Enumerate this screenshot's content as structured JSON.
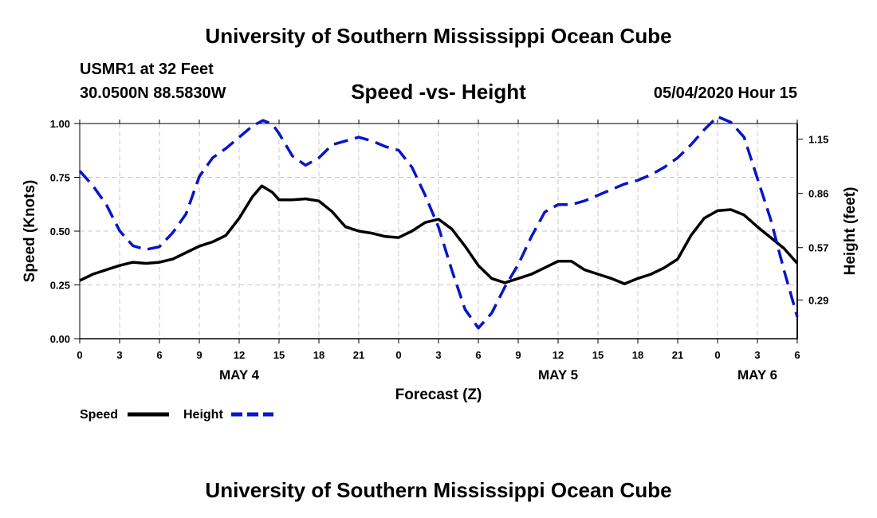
{
  "header": {
    "title": "University of Southern Mississippi Ocean Cube",
    "station": "USMR1 at 32 Feet",
    "coords": "30.0500N 88.5830W",
    "datetime": "05/04/2020 Hour 15"
  },
  "footer": {
    "title": "University of Southern Mississippi Ocean Cube"
  },
  "chart_data": {
    "type": "line",
    "title": "Speed -vs- Height",
    "xlabel": "Forecast (Z)",
    "ylabel": "Speed (Knots)",
    "y2label": "Height (feet)",
    "x_range": [
      0,
      54
    ],
    "ylim": [
      0,
      1.0
    ],
    "y2lim": [
      0.0833,
      1.2333
    ],
    "x_tick_values": [
      0,
      3,
      6,
      9,
      12,
      15,
      18,
      21,
      24,
      27,
      30,
      33,
      36,
      39,
      42,
      45,
      48,
      51,
      54
    ],
    "x_tick_labels": [
      "0",
      "3",
      "6",
      "9",
      "12",
      "15",
      "18",
      "21",
      "0",
      "3",
      "6",
      "9",
      "12",
      "15",
      "18",
      "21",
      "0",
      "3",
      "6"
    ],
    "y_tick_values": [
      0,
      0.25,
      0.5,
      0.75,
      1.0
    ],
    "y_tick_labels": [
      "0.00",
      "0.25",
      "0.50",
      "0.75",
      "1.00"
    ],
    "y2_tick_values": [
      0.29,
      0.57,
      0.86,
      1.15
    ],
    "y2_tick_labels": [
      "0.29",
      "0.57",
      "0.86",
      "1.15"
    ],
    "date_labels": [
      {
        "x": 12,
        "label": "MAY 4"
      },
      {
        "x": 36,
        "label": "MAY 5"
      },
      {
        "x": 51,
        "label": "MAY 6"
      }
    ],
    "grid": true,
    "series": [
      {
        "name": "Speed",
        "axis": "left",
        "color": "#000000",
        "dash": "solid",
        "x": [
          0,
          1,
          2,
          3,
          4,
          5,
          6,
          7,
          8,
          9,
          10,
          11,
          12,
          13,
          13.7,
          14.5,
          15,
          16,
          17,
          18,
          19,
          20,
          21,
          22,
          23,
          24,
          25,
          26,
          27,
          28,
          29,
          30,
          31,
          32,
          33,
          34,
          35,
          36,
          37,
          38,
          39,
          40,
          41,
          42,
          43,
          44,
          45,
          46,
          47,
          48,
          49,
          50,
          51,
          52,
          53,
          54
        ],
        "values": [
          0.27,
          0.3,
          0.32,
          0.34,
          0.355,
          0.35,
          0.355,
          0.37,
          0.4,
          0.43,
          0.45,
          0.48,
          0.56,
          0.66,
          0.71,
          0.68,
          0.645,
          0.645,
          0.65,
          0.64,
          0.59,
          0.52,
          0.5,
          0.49,
          0.475,
          0.47,
          0.5,
          0.54,
          0.555,
          0.51,
          0.43,
          0.34,
          0.28,
          0.26,
          0.28,
          0.3,
          0.33,
          0.36,
          0.36,
          0.32,
          0.3,
          0.28,
          0.255,
          0.28,
          0.3,
          0.33,
          0.37,
          0.48,
          0.56,
          0.595,
          0.6,
          0.575,
          0.52,
          0.47,
          0.42,
          0.35
        ]
      },
      {
        "name": "Height",
        "axis": "right",
        "color": "#0a14c8",
        "dash": "dashed",
        "x": [
          0,
          1,
          2,
          3,
          4,
          5,
          6,
          7,
          8,
          9,
          10,
          11,
          12,
          13,
          13.8,
          14.5,
          15,
          16,
          17,
          18,
          19,
          20,
          21,
          22,
          23,
          24,
          25,
          26,
          27,
          28,
          29,
          30,
          31,
          32,
          33,
          34,
          35,
          36,
          37,
          38,
          39,
          40,
          41,
          42,
          43,
          44,
          45,
          46,
          47,
          48,
          49,
          50,
          51,
          52,
          53,
          54
        ],
        "values": [
          0.98,
          0.9,
          0.8,
          0.66,
          0.58,
          0.56,
          0.575,
          0.65,
          0.75,
          0.95,
          1.05,
          1.1,
          1.16,
          1.22,
          1.25,
          1.23,
          1.18,
          1.06,
          1.01,
          1.05,
          1.12,
          1.14,
          1.16,
          1.14,
          1.11,
          1.09,
          1.0,
          0.85,
          0.68,
          0.45,
          0.24,
          0.14,
          0.22,
          0.36,
          0.48,
          0.63,
          0.76,
          0.8,
          0.8,
          0.82,
          0.85,
          0.88,
          0.91,
          0.93,
          0.96,
          1.0,
          1.05,
          1.12,
          1.2,
          1.27,
          1.24,
          1.16,
          0.94,
          0.72,
          0.45,
          0.2
        ]
      }
    ],
    "legend": {
      "position": "bottom-left",
      "entries": [
        "Speed",
        "Height"
      ]
    }
  }
}
